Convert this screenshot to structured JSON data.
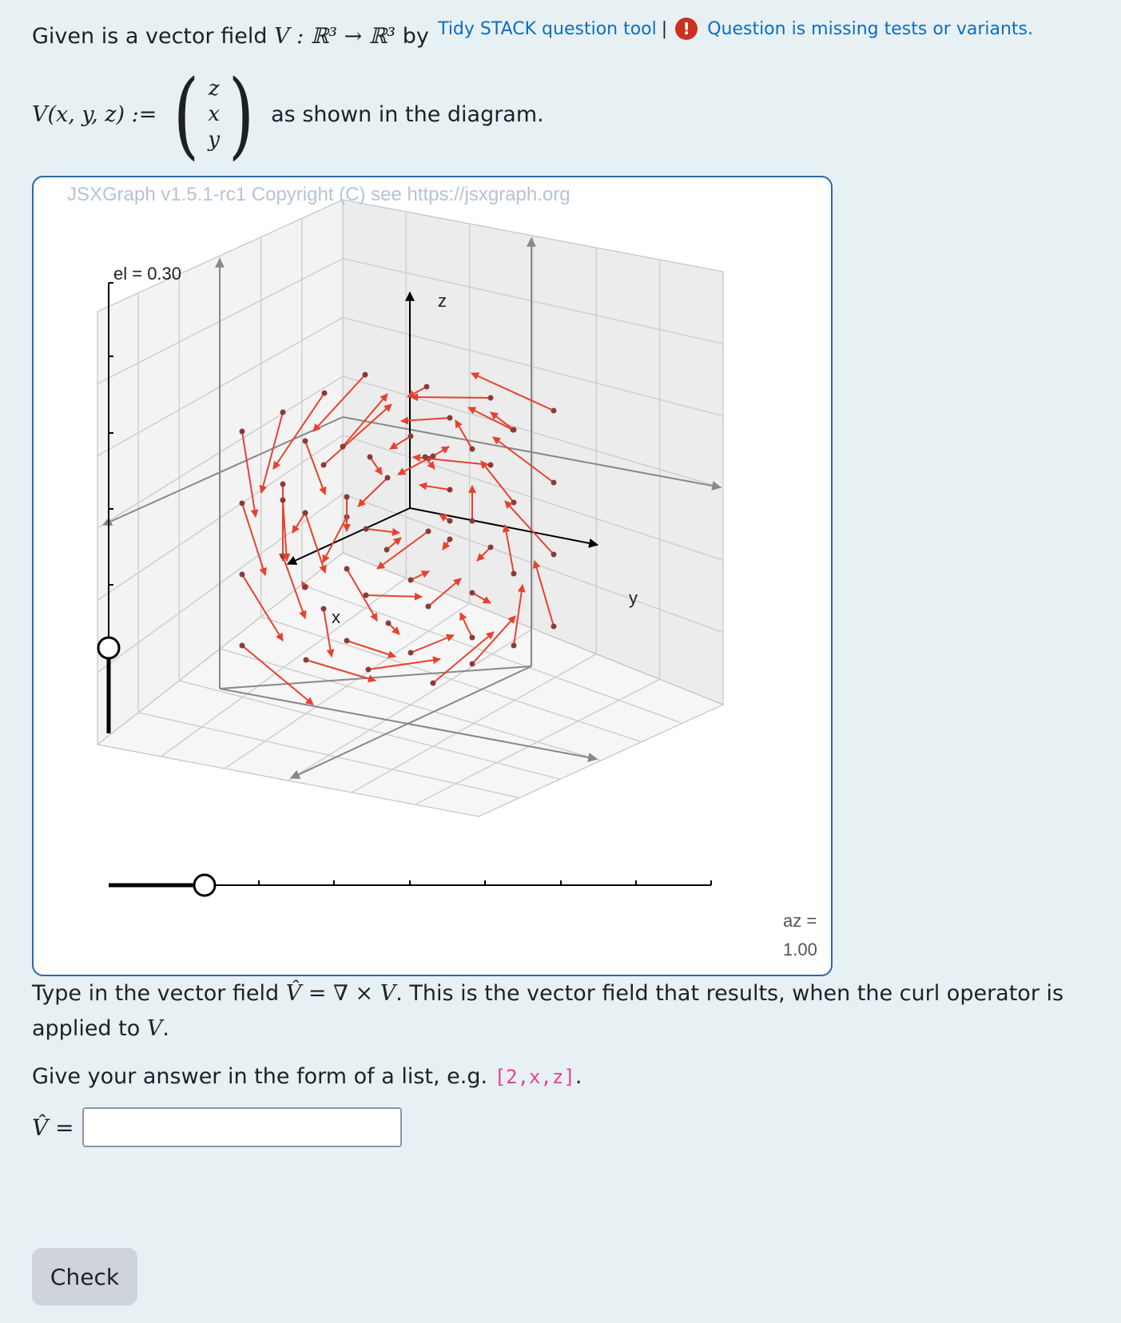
{
  "header": {
    "tool_link": "Tidy STACK question tool",
    "separator": "|",
    "warning_icon": "exclamation-circle-icon",
    "warning_link": "Question is missing tests or variants."
  },
  "question": {
    "intro_prefix": "Given is a vector field",
    "intro_map": "V : ℝ³ → ℝ³",
    "intro_suffix": "by",
    "field_lhs": "V(x, y, z) :=",
    "field_components": [
      "z",
      "x",
      "y"
    ],
    "field_suffix": "as shown in the diagram.",
    "task_prefix": "Type in the vector field",
    "task_formula": "V̂ = ∇ × V",
    "task_middle": ". This is the vector field that results, when the curl operator is applied to",
    "task_var": "V",
    "task_end": ".",
    "hint_prefix": "Give your answer in the form of a list, e.g.",
    "hint_code": "[2,x,z]",
    "hint_end": ".",
    "answer_label": "V̂ =",
    "answer_value": ""
  },
  "graph": {
    "copyright": "JSXGraph v1.5.1-rc1 Copyright (C) see https://jsxgraph.org",
    "el_label": "el = 0.30",
    "el_value": 0.3,
    "az_label": "az =",
    "az_value_text": "1.00",
    "az_value": 1.0,
    "axis_labels": {
      "x": "x",
      "y": "y",
      "z": "z"
    },
    "colors": {
      "arrows": "#e8412e",
      "points": "#8b3a3a",
      "axes": "#000000",
      "frame": "#888888"
    }
  },
  "check_button": "Check"
}
